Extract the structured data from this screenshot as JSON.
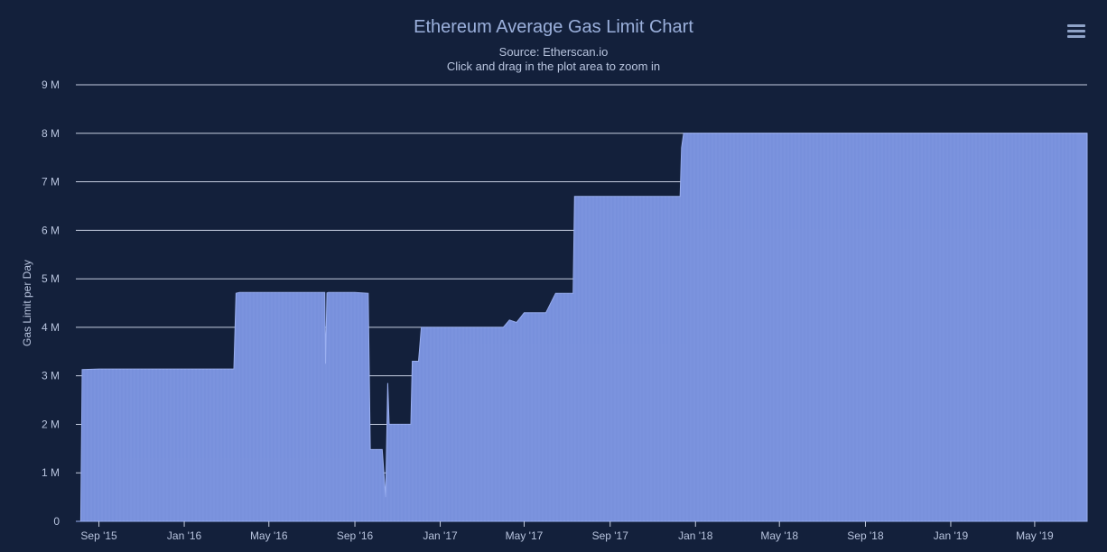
{
  "header": {
    "title": "Ethereum Average Gas Limit Chart",
    "subtitle_source": "Source: Etherscan.io",
    "subtitle_hint": "Click and drag in the plot area to zoom in"
  },
  "toolbar": {
    "menu_icon": "hamburger-menu-icon"
  },
  "colors": {
    "background": "#13203b",
    "fill": "#7b93de",
    "stroke": "#9aaff0",
    "grid": "#c5cde0",
    "text": "#b8c4de"
  },
  "chart_data": {
    "type": "area",
    "title": "Ethereum Average Gas Limit Chart",
    "subtitle": "Source: Etherscan.io",
    "xlabel": "",
    "ylabel": "Gas Limit per Day",
    "ylim": [
      0,
      9000000
    ],
    "yticks": [
      0,
      1000000,
      2000000,
      3000000,
      4000000,
      5000000,
      6000000,
      7000000,
      8000000,
      9000000
    ],
    "ytick_labels": [
      "0",
      "1 M",
      "2 M",
      "3 M",
      "4 M",
      "5 M",
      "6 M",
      "7 M",
      "8 M",
      "9 M"
    ],
    "xlim": [
      "2015-07-30",
      "2019-07-15"
    ],
    "xticks": [
      "2015-09-01",
      "2016-01-01",
      "2016-05-01",
      "2016-09-01",
      "2017-01-01",
      "2017-05-01",
      "2017-09-01",
      "2018-01-01",
      "2018-05-01",
      "2018-09-01",
      "2019-01-01",
      "2019-05-01"
    ],
    "xtick_labels": [
      "Sep '15",
      "Jan '16",
      "May '16",
      "Sep '16",
      "Jan '17",
      "May '17",
      "Sep '17",
      "Jan '18",
      "May '18",
      "Sep '18",
      "Jan '19",
      "May '19"
    ],
    "grid": true,
    "legend": "none",
    "series": [
      {
        "x": [
          "2015-07-30",
          "2015-08-06",
          "2015-08-08",
          "2015-09-01",
          "2015-10-01",
          "2015-11-01",
          "2015-12-01",
          "2016-01-01",
          "2016-02-01",
          "2016-03-01",
          "2016-03-12",
          "2016-03-15",
          "2016-03-20",
          "2016-04-01",
          "2016-05-01",
          "2016-06-01",
          "2016-07-01",
          "2016-07-20",
          "2016-07-21",
          "2016-07-23",
          "2016-07-25",
          "2016-08-01",
          "2016-09-01",
          "2016-09-20",
          "2016-09-23",
          "2016-10-01",
          "2016-10-10",
          "2016-10-15",
          "2016-10-18",
          "2016-10-20",
          "2016-10-23",
          "2016-10-28",
          "2016-11-02",
          "2016-11-10",
          "2016-11-20",
          "2016-11-22",
          "2016-12-01",
          "2016-12-05",
          "2017-01-01",
          "2017-02-01",
          "2017-03-01",
          "2017-04-01",
          "2017-04-10",
          "2017-04-20",
          "2017-05-01",
          "2017-06-01",
          "2017-06-15",
          "2017-07-01",
          "2017-07-10",
          "2017-07-12",
          "2017-08-01",
          "2017-09-01",
          "2017-10-01",
          "2017-11-01",
          "2017-12-01",
          "2017-12-10",
          "2017-12-12",
          "2017-12-15",
          "2018-01-01",
          "2018-05-01",
          "2018-09-01",
          "2019-01-01",
          "2019-05-01",
          "2019-07-15"
        ],
        "values": [
          0,
          0,
          3130000,
          3140000,
          3140000,
          3140000,
          3140000,
          3140000,
          3140000,
          3140000,
          3140000,
          4700000,
          4720000,
          4720000,
          4720000,
          4720000,
          4720000,
          4720000,
          3250000,
          4710000,
          4720000,
          4720000,
          4720000,
          4700000,
          1480000,
          1480000,
          1480000,
          500000,
          2850000,
          2000000,
          2000000,
          2000000,
          2000000,
          2000000,
          2000000,
          3300000,
          3300000,
          4000000,
          4000000,
          4000000,
          4000000,
          4000000,
          4150000,
          4100000,
          4300000,
          4300000,
          4700000,
          4700000,
          4700000,
          6700000,
          6700000,
          6700000,
          6700000,
          6700000,
          6700000,
          6700000,
          7700000,
          8000000,
          8000000,
          8000000,
          8000000,
          8000000,
          8000000,
          8000000
        ]
      }
    ]
  }
}
